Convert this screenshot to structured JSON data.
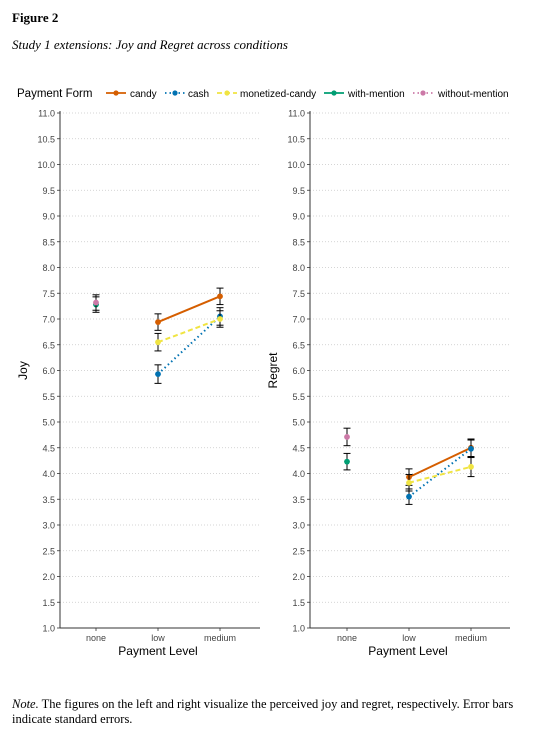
{
  "figure": {
    "label": "Figure 2",
    "title": "Study 1 extensions: Joy and Regret across conditions"
  },
  "note": {
    "lead": "Note.",
    "text": " The figures on the left and right visualize the perceived joy and regret, respectively. Error bars indicate standard errors."
  },
  "legend": {
    "title": "Payment Form",
    "placement": "top"
  },
  "colors": {
    "candy": "#D55E00",
    "cash": "#0072B2",
    "monetized-candy": "#F0E442",
    "with-mention": "#009E73",
    "without-mention": "#CC79A7"
  },
  "chart_data": [
    {
      "type": "line",
      "xlabel": "Payment Level",
      "ylabel": "Joy",
      "categories": [
        "none",
        "low",
        "medium"
      ],
      "ylim": [
        1.0,
        11.0
      ],
      "yticks": [
        "1.0",
        "1.5",
        "2.0",
        "2.5",
        "3.0",
        "3.5",
        "4.0",
        "4.5",
        "5.0",
        "5.5",
        "6.0",
        "6.5",
        "7.0",
        "7.5",
        "8.0",
        "8.5",
        "9.0",
        "9.5",
        "10.0",
        "10.5",
        "11.0"
      ],
      "grid": true,
      "series": [
        {
          "name": "candy",
          "color": "#D55E00",
          "dash": "solid",
          "points": [
            {
              "x": "low",
              "y": 6.94,
              "se": 0.16
            },
            {
              "x": "medium",
              "y": 7.44,
              "se": 0.16
            }
          ]
        },
        {
          "name": "cash",
          "color": "#0072B2",
          "dash": "dotted",
          "points": [
            {
              "x": "low",
              "y": 5.93,
              "se": 0.18
            },
            {
              "x": "medium",
              "y": 7.05,
              "se": 0.17
            }
          ]
        },
        {
          "name": "monetized-candy",
          "color": "#F0E442",
          "dash": "dashed",
          "points": [
            {
              "x": "low",
              "y": 6.55,
              "se": 0.17
            },
            {
              "x": "medium",
              "y": 7.0,
              "se": 0.16
            }
          ]
        },
        {
          "name": "with-mention",
          "color": "#009E73",
          "dash": "solid",
          "points": [
            {
              "x": "none",
              "y": 7.28,
              "se": 0.15
            }
          ]
        },
        {
          "name": "without-mention",
          "color": "#CC79A7",
          "dash": "dotted",
          "points": [
            {
              "x": "none",
              "y": 7.32,
              "se": 0.15
            }
          ]
        }
      ]
    },
    {
      "type": "line",
      "xlabel": "Payment Level",
      "ylabel": "Regret",
      "categories": [
        "none",
        "low",
        "medium"
      ],
      "ylim": [
        1.0,
        11.0
      ],
      "yticks": [
        "1.0",
        "1.5",
        "2.0",
        "2.5",
        "3.0",
        "3.5",
        "4.0",
        "4.5",
        "5.0",
        "5.5",
        "6.0",
        "6.5",
        "7.0",
        "7.5",
        "8.0",
        "8.5",
        "9.0",
        "9.5",
        "10.0",
        "10.5",
        "11.0"
      ],
      "grid": true,
      "series": [
        {
          "name": "candy",
          "color": "#D55E00",
          "dash": "solid",
          "points": [
            {
              "x": "low",
              "y": 3.93,
              "se": 0.16
            },
            {
              "x": "medium",
              "y": 4.5,
              "se": 0.17
            }
          ]
        },
        {
          "name": "cash",
          "color": "#0072B2",
          "dash": "dotted",
          "points": [
            {
              "x": "low",
              "y": 3.55,
              "se": 0.15
            },
            {
              "x": "medium",
              "y": 4.48,
              "se": 0.17
            }
          ]
        },
        {
          "name": "monetized-candy",
          "color": "#F0E442",
          "dash": "dashed",
          "points": [
            {
              "x": "low",
              "y": 3.82,
              "se": 0.16
            },
            {
              "x": "medium",
              "y": 4.13,
              "se": 0.19
            }
          ]
        },
        {
          "name": "with-mention",
          "color": "#009E73",
          "dash": "solid",
          "points": [
            {
              "x": "none",
              "y": 4.23,
              "se": 0.16
            }
          ]
        },
        {
          "name": "without-mention",
          "color": "#CC79A7",
          "dash": "dotted",
          "points": [
            {
              "x": "none",
              "y": 4.71,
              "se": 0.17
            }
          ]
        }
      ]
    }
  ]
}
